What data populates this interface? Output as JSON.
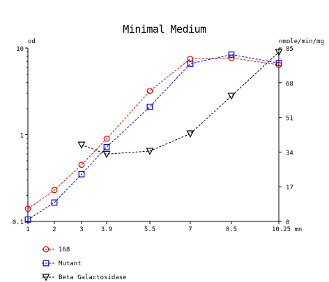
{
  "chart_data": {
    "type": "line",
    "title": "Minimal Medium",
    "ylabel_left": "od",
    "ylabel_right": "nmole/min/mg",
    "xlabel": "mn",
    "x_ticks": [
      1,
      2,
      3,
      3.9,
      5.5,
      7,
      8.5,
      10.25
    ],
    "x_tick_labels": [
      "1",
      "2",
      "3",
      "3.9",
      "5.5",
      "7",
      "8.5",
      "10.25"
    ],
    "y_left_scale": "log",
    "y_left_lim": [
      0.1,
      10
    ],
    "y_left_tick_labels": [
      "0.1",
      "1",
      "10"
    ],
    "y_right_lim": [
      0,
      85
    ],
    "y_right_tick_labels": [
      "0",
      "17",
      "34",
      "51",
      "68",
      "85"
    ],
    "grid": false,
    "legend_position": "bottom-left",
    "series": [
      {
        "name": "168",
        "axis": "left",
        "marker": "circle",
        "color": "#e00000",
        "x": [
          1,
          2,
          3,
          3.9,
          5.5,
          7,
          8.5,
          10.25
        ],
        "y": [
          0.14,
          0.23,
          0.45,
          0.9,
          3.2,
          7.5,
          7.7,
          6.4
        ]
      },
      {
        "name": "Mutant",
        "axis": "left",
        "marker": "square",
        "color": "#0000e0",
        "x": [
          1,
          2,
          3,
          3.9,
          5.5,
          7,
          8.5,
          10.25
        ],
        "y": [
          0.105,
          0.165,
          0.35,
          0.72,
          2.1,
          6.6,
          8.4,
          6.7
        ]
      },
      {
        "name": "Beta Galactosidase",
        "axis": "right",
        "marker": "triangle-down",
        "color": "#000000",
        "x": [
          3,
          3.9,
          5.5,
          7,
          8.5,
          10.25
        ],
        "y": [
          37.5,
          33,
          34.5,
          43,
          61.5,
          83
        ]
      }
    ]
  }
}
